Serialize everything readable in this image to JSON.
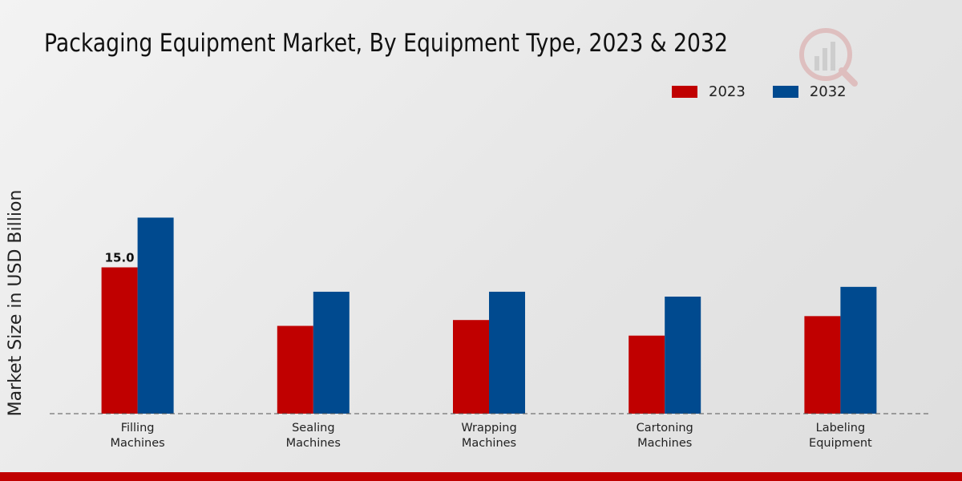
{
  "chart_data": {
    "type": "bar",
    "title": "Packaging Equipment Market, By Equipment Type, 2023 & 2032",
    "xlabel": "",
    "ylabel": "Market Size in USD Billion",
    "categories": [
      [
        "Filling",
        "Machines"
      ],
      [
        "Sealing",
        "Machines"
      ],
      [
        "Wrapping",
        "Machines"
      ],
      [
        "Cartoning",
        "Machines"
      ],
      [
        "Labeling",
        "Equipment"
      ]
    ],
    "series": [
      {
        "name": "2023",
        "color": "#c00000",
        "values": [
          15.0,
          9.0,
          9.6,
          8.0,
          10.0
        ]
      },
      {
        "name": "2032",
        "color": "#004a8f",
        "values": [
          20.1,
          12.5,
          12.5,
          12.0,
          13.0
        ]
      }
    ],
    "data_labels": [
      {
        "series": 0,
        "index": 0,
        "text": "15.0"
      }
    ],
    "ylim": [
      0,
      30
    ],
    "grid": false,
    "legend_position": "top-right",
    "baseline": "dashed"
  }
}
